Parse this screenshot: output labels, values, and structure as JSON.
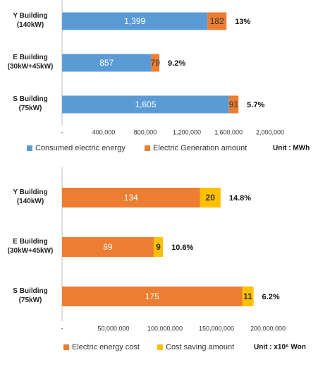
{
  "chart_data": [
    {
      "type": "bar",
      "orientation": "horizontal",
      "stacked": true,
      "categories": [
        "Y Building\n(140kW)",
        "E Building\n(30kW+45kW)",
        "S Building\n(75kW)"
      ],
      "series": [
        {
          "name": "Consumed electric energy",
          "color": "#5b9bd5",
          "values": [
            1399000,
            857000,
            1605000
          ],
          "value_labels": [
            "1,399",
            "857",
            "1,605"
          ]
        },
        {
          "name": "Electric Generation amount",
          "color": "#ed7d31",
          "values": [
            182000,
            79000,
            91000
          ],
          "value_labels": [
            "182",
            "79",
            "91"
          ]
        }
      ],
      "annotations": [
        "13%",
        "9.2%",
        "5.7%"
      ],
      "unit_label": "Unit : MWh",
      "xlim": [
        0,
        2000000
      ],
      "xticks": [
        {
          "value": 0,
          "label": "-"
        },
        {
          "value": 400000,
          "label": "400,000"
        },
        {
          "value": 800000,
          "label": "800,000"
        },
        {
          "value": 1200000,
          "label": "1,200,000"
        },
        {
          "value": 1600000,
          "label": "1,600,000"
        },
        {
          "value": 2000000,
          "label": "2,000,000"
        }
      ],
      "legend": "bottom"
    },
    {
      "type": "bar",
      "orientation": "horizontal",
      "stacked": true,
      "categories": [
        "Y Building\n(140kW)",
        "E Building\n(30kW+45kW)",
        "S Building\n(75kW)"
      ],
      "series": [
        {
          "name": "Electric energy cost",
          "color": "#ed7d31",
          "values": [
            134000000,
            89000000,
            175000000
          ],
          "value_labels": [
            "134",
            "89",
            "175"
          ]
        },
        {
          "name": "Cost saving amount",
          "color": "#ffc000",
          "values": [
            20000000,
            9000000,
            11000000
          ],
          "value_labels": [
            "20",
            "9",
            "11"
          ]
        }
      ],
      "annotations": [
        "14.8%",
        "10.6%",
        "6.2%"
      ],
      "unit_label": "Unit : x10⁶ Won",
      "xlim": [
        0,
        200000000
      ],
      "xticks": [
        {
          "value": 0,
          "label": "-"
        },
        {
          "value": 50000000,
          "label": "50,000,000"
        },
        {
          "value": 100000000,
          "label": "100,000,000"
        },
        {
          "value": 150000000,
          "label": "150,000,000"
        },
        {
          "value": 200000000,
          "label": "200,000,000"
        }
      ],
      "legend": "bottom"
    }
  ]
}
